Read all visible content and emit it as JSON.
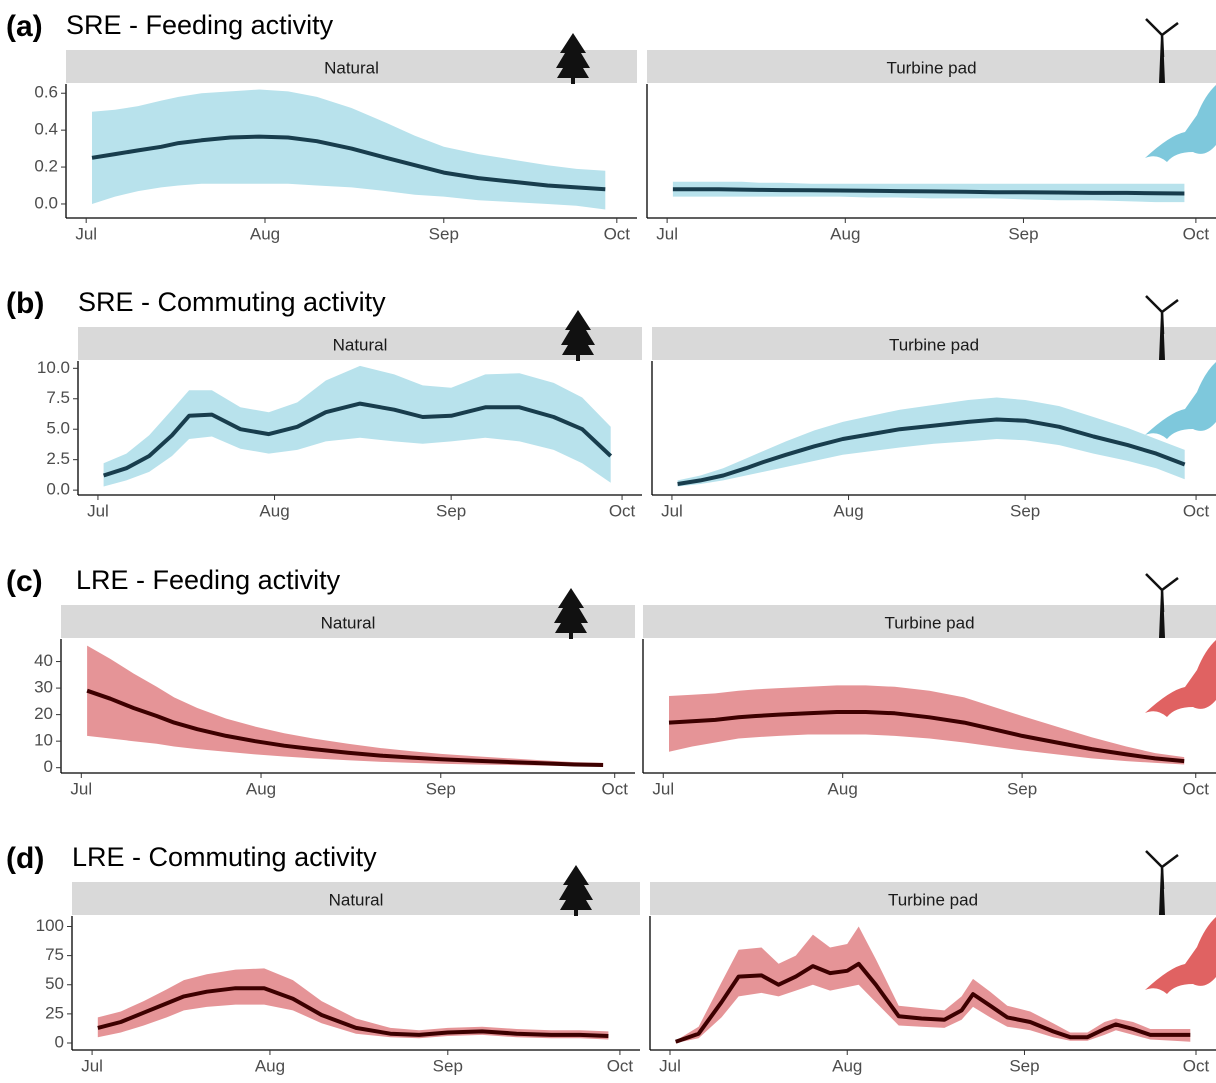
{
  "chart_data": [
    {
      "type": "line",
      "label": "(a)",
      "title": "SRE - Feeding activity",
      "color": "#183d4d",
      "band_color": "#b8e2ec",
      "xlim": [
        -3.5,
        95.5
      ],
      "xticks": [
        {
          "value": 0,
          "label": "Jul"
        },
        {
          "value": 31,
          "label": "Aug"
        },
        {
          "value": 62,
          "label": "Sep"
        },
        {
          "value": 92,
          "label": "Oct"
        }
      ],
      "ylim": [
        -0.076,
        0.65
      ],
      "yticks": [
        {
          "value": 0,
          "label": "0.0"
        },
        0.2,
        0.4,
        0.6
      ],
      "facets": [
        {
          "name": "Natural",
          "x": [
            1,
            5,
            9,
            13,
            16,
            20,
            25,
            30,
            35,
            40,
            46,
            52,
            57,
            62,
            68,
            74,
            80,
            85,
            90
          ],
          "values": [
            0.25,
            0.27,
            0.29,
            0.31,
            0.33,
            0.345,
            0.36,
            0.365,
            0.36,
            0.34,
            0.3,
            0.25,
            0.21,
            0.17,
            0.14,
            0.12,
            0.1,
            0.09,
            0.08
          ],
          "lower": [
            0,
            0.04,
            0.07,
            0.09,
            0.1,
            0.11,
            0.11,
            0.11,
            0.11,
            0.1,
            0.09,
            0.07,
            0.05,
            0.04,
            0.02,
            0.01,
            0,
            -0.01,
            -0.03
          ],
          "upper": [
            0.5,
            0.51,
            0.53,
            0.56,
            0.58,
            0.6,
            0.61,
            0.62,
            0.61,
            0.58,
            0.52,
            0.44,
            0.37,
            0.31,
            0.27,
            0.24,
            0.21,
            0.19,
            0.18
          ]
        },
        {
          "name": "Turbine pad",
          "x": [
            1,
            5,
            9,
            13,
            16,
            20,
            25,
            30,
            35,
            40,
            46,
            52,
            57,
            62,
            68,
            74,
            80,
            85,
            90
          ],
          "values": [
            0.08,
            0.08,
            0.08,
            0.078,
            0.076,
            0.075,
            0.074,
            0.073,
            0.072,
            0.07,
            0.068,
            0.066,
            0.064,
            0.063,
            0.062,
            0.06,
            0.06,
            0.058,
            0.057
          ],
          "lower": [
            0.04,
            0.04,
            0.04,
            0.04,
            0.04,
            0.04,
            0.04,
            0.04,
            0.035,
            0.035,
            0.03,
            0.03,
            0.03,
            0.025,
            0.02,
            0.02,
            0.015,
            0.01,
            0.01
          ],
          "upper": [
            0.12,
            0.12,
            0.12,
            0.12,
            0.115,
            0.115,
            0.11,
            0.11,
            0.11,
            0.11,
            0.11,
            0.11,
            0.11,
            0.11,
            0.11,
            0.11,
            0.11,
            0.11,
            0.11
          ]
        }
      ]
    },
    {
      "type": "line",
      "label": "(b)",
      "title": "SRE - Commuting activity",
      "color": "#183d4d",
      "band_color": "#b8e2ec",
      "xlim": [
        -3.5,
        95.5
      ],
      "xticks": [
        {
          "value": 0,
          "label": "Jul"
        },
        {
          "value": 31,
          "label": "Aug"
        },
        {
          "value": 62,
          "label": "Sep"
        },
        {
          "value": 92,
          "label": "Oct"
        }
      ],
      "ylim": [
        -0.4,
        10.6
      ],
      "yticks": [
        {
          "value": 0,
          "label": "0.0"
        },
        2.5,
        {
          "value": 5,
          "label": "5.0"
        },
        7.5,
        {
          "value": 10,
          "label": "10.0"
        }
      ],
      "facets": [
        {
          "name": "Natural",
          "x": [
            1,
            5,
            9,
            13,
            16,
            20,
            25,
            30,
            35,
            40,
            46,
            52,
            57,
            62,
            68,
            74,
            80,
            85,
            90
          ],
          "values": [
            1.2,
            1.8,
            2.8,
            4.5,
            6.1,
            6.2,
            5,
            4.6,
            5.2,
            6.4,
            7.1,
            6.6,
            6,
            6.1,
            6.8,
            6.8,
            6,
            5,
            2.8
          ],
          "lower": [
            0.3,
            0.8,
            1.5,
            2.8,
            4.2,
            4.4,
            3.4,
            3,
            3.3,
            4,
            4.3,
            4,
            3.8,
            4,
            4.3,
            4,
            3.3,
            2.2,
            0.6
          ],
          "upper": [
            2.2,
            3,
            4.5,
            6.6,
            8.2,
            8.2,
            6.8,
            6.4,
            7.2,
            9,
            10.2,
            9.5,
            8.6,
            8.4,
            9.5,
            9.6,
            8.8,
            7.6,
            5.2
          ]
        },
        {
          "name": "Turbine pad",
          "x": [
            1,
            5,
            9,
            13,
            16,
            20,
            25,
            30,
            35,
            40,
            46,
            52,
            57,
            62,
            68,
            74,
            80,
            85,
            90
          ],
          "values": [
            0.5,
            0.8,
            1.2,
            1.8,
            2.3,
            2.9,
            3.6,
            4.2,
            4.6,
            5,
            5.3,
            5.6,
            5.8,
            5.7,
            5.2,
            4.4,
            3.7,
            3,
            2.1
          ],
          "lower": [
            0.3,
            0.5,
            0.8,
            1.2,
            1.5,
            1.9,
            2.4,
            2.9,
            3.2,
            3.5,
            3.8,
            4,
            4.2,
            4.1,
            3.7,
            3,
            2.4,
            1.8,
            0.9
          ],
          "upper": [
            0.8,
            1.2,
            1.8,
            2.6,
            3.2,
            4,
            4.9,
            5.6,
            6.1,
            6.6,
            7,
            7.4,
            7.6,
            7.4,
            6.9,
            6,
            5.1,
            4.2,
            3.3
          ]
        }
      ]
    },
    {
      "type": "line",
      "label": "(c)",
      "title": "LRE - Feeding activity",
      "color": "#3d0000",
      "band_color": "#e59497",
      "xlim": [
        -3.5,
        95.5
      ],
      "xticks": [
        {
          "value": 0,
          "label": "Jul"
        },
        {
          "value": 31,
          "label": "Aug"
        },
        {
          "value": 62,
          "label": "Sep"
        },
        {
          "value": 92,
          "label": "Oct"
        }
      ],
      "ylim": [
        -2,
        48.5
      ],
      "yticks": [
        0,
        10,
        20,
        30,
        40
      ],
      "facets": [
        {
          "name": "Natural",
          "x": [
            1,
            5,
            9,
            13,
            16,
            20,
            25,
            30,
            35,
            40,
            46,
            52,
            57,
            62,
            68,
            74,
            80,
            85,
            90
          ],
          "values": [
            29,
            26,
            22.5,
            19.5,
            17,
            14.5,
            12,
            10,
            8.3,
            7,
            5.6,
            4.5,
            3.8,
            3.2,
            2.6,
            2.1,
            1.6,
            1.2,
            1
          ],
          "lower": [
            12,
            11,
            10,
            9,
            8,
            7,
            6,
            5,
            4.2,
            3.5,
            2.8,
            2.2,
            1.8,
            1.5,
            1.2,
            1,
            0.8,
            0.6,
            0.5
          ],
          "upper": [
            46,
            41,
            35.5,
            30.5,
            26.5,
            22.5,
            18.5,
            15.5,
            13,
            11,
            9,
            7.3,
            6.2,
            5.2,
            4.3,
            3.5,
            2.7,
            2.1,
            1.8
          ]
        },
        {
          "name": "Turbine pad",
          "x": [
            1,
            5,
            9,
            13,
            16,
            20,
            25,
            30,
            35,
            40,
            46,
            52,
            57,
            62,
            68,
            74,
            80,
            85,
            90
          ],
          "values": [
            17,
            17.5,
            18,
            19,
            19.5,
            20,
            20.5,
            21,
            21,
            20.5,
            19,
            17,
            14.5,
            12,
            9.5,
            7,
            5,
            3.5,
            2.5
          ],
          "lower": [
            6,
            8,
            9.5,
            11,
            11.5,
            12,
            12.5,
            12.5,
            12.5,
            12,
            11,
            9.5,
            8,
            6.5,
            5,
            3.5,
            2.5,
            1.8,
            1.2
          ],
          "upper": [
            27,
            27.5,
            28,
            29,
            29.5,
            30,
            30.5,
            31,
            31,
            30.5,
            29,
            26.5,
            23,
            19.5,
            15.5,
            11.5,
            8,
            5.5,
            4
          ]
        }
      ]
    },
    {
      "type": "line",
      "label": "(d)",
      "title": "LRE - Commuting activity",
      "color": "#3d0000",
      "band_color": "#e59497",
      "xlim": [
        -3.5,
        95.5
      ],
      "xticks": [
        {
          "value": 0,
          "label": "Jul"
        },
        {
          "value": 31,
          "label": "Aug"
        },
        {
          "value": 62,
          "label": "Sep"
        },
        {
          "value": 92,
          "label": "Oct"
        }
      ],
      "ylim": [
        -6,
        109
      ],
      "yticks": [
        0,
        25,
        50,
        75,
        100
      ],
      "facets": [
        {
          "name": "Natural",
          "x": [
            1,
            5,
            9,
            13,
            16,
            20,
            25,
            30,
            35,
            40,
            46,
            52,
            57,
            62,
            68,
            74,
            80,
            85,
            90
          ],
          "values": [
            13,
            18,
            26,
            34,
            40,
            44,
            47,
            47,
            38,
            24,
            13,
            8,
            7,
            9,
            10,
            8,
            7,
            7,
            6
          ],
          "lower": [
            5,
            9,
            15,
            22,
            28,
            31,
            33,
            33,
            28,
            17,
            8,
            5,
            4,
            6,
            7,
            5,
            4,
            4,
            3
          ],
          "upper": [
            22,
            27,
            36,
            46,
            54,
            59,
            63,
            64,
            54,
            36,
            21,
            13,
            11,
            13,
            14,
            12,
            11,
            11,
            10
          ]
        },
        {
          "name": "Turbine pad",
          "x": [
            1,
            5,
            9,
            12,
            16,
            19,
            22,
            25,
            28,
            31,
            33,
            36,
            40,
            44,
            48,
            51,
            53,
            56,
            59,
            63,
            67,
            70,
            73,
            76,
            78,
            81,
            84,
            88,
            91
          ],
          "values": [
            1,
            8,
            35,
            57,
            58,
            50,
            57,
            66,
            60,
            62,
            68,
            50,
            23,
            21,
            20,
            28,
            42,
            32,
            22,
            18,
            10,
            5,
            5,
            12,
            16,
            12,
            7,
            7,
            7
          ],
          "lower": [
            0,
            4,
            22,
            40,
            43,
            40,
            45,
            50,
            45,
            48,
            50,
            35,
            15,
            14,
            13,
            20,
            31,
            22,
            14,
            11,
            5,
            2,
            2,
            7,
            11,
            7,
            3,
            2,
            1
          ],
          "upper": [
            2,
            14,
            52,
            80,
            82,
            68,
            75,
            93,
            82,
            85,
            100,
            72,
            32,
            30,
            28,
            40,
            55,
            44,
            32,
            27,
            17,
            9,
            9,
            18,
            21,
            18,
            12,
            12,
            12
          ]
        }
      ]
    }
  ]
}
